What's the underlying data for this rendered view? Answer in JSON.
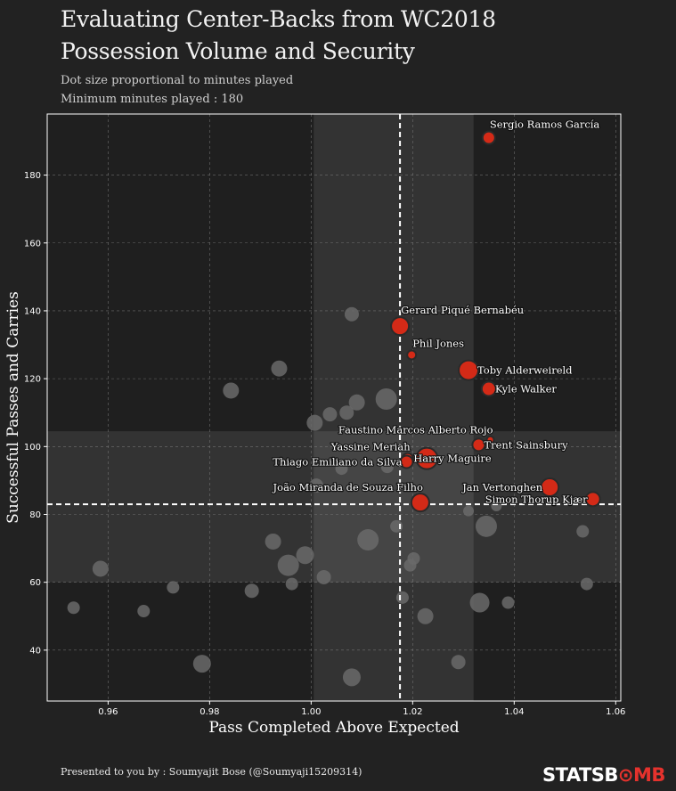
{
  "title_line1": "Evaluating Center-Backs from WC2018",
  "title_line2": "Possession Volume and Security",
  "subtitle_line1": "Dot size proportional to minutes played",
  "subtitle_line2": "Minimum minutes played : 180",
  "footer": "Presented to you by : Soumyajit Bose (@Soumyaji15209314)",
  "logo_part1": "STATSB",
  "logo_part2": "MB",
  "logo_o": "⊙",
  "colors": {
    "background": "#222222",
    "highlight": "#d42a17",
    "others": "#6a6a6a",
    "band": "#3a3a3a"
  },
  "chart_data": {
    "type": "scatter",
    "xlabel": "Pass Completed Above Expected",
    "ylabel": "Successful Passes and Carries",
    "xlim": [
      0.948,
      1.061
    ],
    "ylim": [
      25,
      198
    ],
    "xticks": [
      0.96,
      0.98,
      1.0,
      1.02,
      1.04,
      1.06
    ],
    "xtick_labels": [
      "0.96",
      "0.98",
      "1.00",
      "1.02",
      "1.04",
      "1.06"
    ],
    "yticks": [
      40,
      60,
      80,
      100,
      120,
      140,
      160,
      180
    ],
    "ytick_labels": [
      "40",
      "60",
      "80",
      "100",
      "120",
      "140",
      "160",
      "180"
    ],
    "grid": true,
    "mean_x": 1.0175,
    "mean_y": 83,
    "x_band": [
      1.0005,
      1.032
    ],
    "y_band": [
      60,
      104.5
    ],
    "highlighted": [
      {
        "name": "Sergio Ramos García",
        "x": 1.035,
        "y": 191,
        "size": 7,
        "label_pos": "above-right"
      },
      {
        "name": "Gerard Piqué Bernabéu",
        "x": 1.0175,
        "y": 135.5,
        "size": 10,
        "label_pos": "above-right"
      },
      {
        "name": "Phil Jones",
        "x": 1.0198,
        "y": 127,
        "size": 5,
        "label_pos": "above-right"
      },
      {
        "name": "Toby Alderweireld",
        "x": 1.031,
        "y": 122.5,
        "size": 11,
        "label_pos": "right"
      },
      {
        "name": "Kyle Walker",
        "x": 1.035,
        "y": 117,
        "size": 8,
        "label_pos": "right"
      },
      {
        "name": "Faustino Marcos Alberto Rojo",
        "x": 1.0353,
        "y": 102,
        "size": 4,
        "label_pos": "above-left"
      },
      {
        "name": "Trent Sainsbury",
        "x": 1.033,
        "y": 100.5,
        "size": 7,
        "label_pos": "right"
      },
      {
        "name": "Yassine Meriah",
        "x": 1.019,
        "y": 96.5,
        "size": 6,
        "label_pos": "above-left"
      },
      {
        "name": "Thiago Emiliano da Silva",
        "x": 1.0188,
        "y": 95.5,
        "size": 7,
        "label_pos": "left"
      },
      {
        "name": "Harry Maguire",
        "x": 1.0228,
        "y": 96.5,
        "size": 12,
        "label_pos": "center"
      },
      {
        "name": "Jan Vertonghen",
        "x": 1.047,
        "y": 88,
        "size": 10,
        "label_pos": "left"
      },
      {
        "name": "Simon Thorup Kjær",
        "x": 1.0555,
        "y": 84.5,
        "size": 8,
        "label_pos": "left"
      },
      {
        "name": "João Miranda de Souza Filho",
        "x": 1.0215,
        "y": 83.5,
        "size": 10,
        "label_pos": "above-left"
      }
    ],
    "others": [
      {
        "x": 1.008,
        "y": 139,
        "size": 8
      },
      {
        "x": 0.9937,
        "y": 123,
        "size": 9
      },
      {
        "x": 0.9842,
        "y": 116.5,
        "size": 9
      },
      {
        "x": 1.0148,
        "y": 114,
        "size": 12
      },
      {
        "x": 1.009,
        "y": 113,
        "size": 9
      },
      {
        "x": 1.007,
        "y": 110,
        "size": 8
      },
      {
        "x": 1.0037,
        "y": 109.5,
        "size": 8
      },
      {
        "x": 1.0007,
        "y": 107,
        "size": 9
      },
      {
        "x": 1.015,
        "y": 94,
        "size": 7
      },
      {
        "x": 1.006,
        "y": 93.5,
        "size": 7
      },
      {
        "x": 1.001,
        "y": 88.5,
        "size": 8
      },
      {
        "x": 1.031,
        "y": 81,
        "size": 6
      },
      {
        "x": 1.0365,
        "y": 82.5,
        "size": 6
      },
      {
        "x": 1.0345,
        "y": 76.5,
        "size": 12
      },
      {
        "x": 1.0168,
        "y": 76.5,
        "size": 7
      },
      {
        "x": 1.0112,
        "y": 72.5,
        "size": 12
      },
      {
        "x": 0.9925,
        "y": 72,
        "size": 9
      },
      {
        "x": 0.9988,
        "y": 68,
        "size": 10
      },
      {
        "x": 0.9955,
        "y": 65,
        "size": 12
      },
      {
        "x": 1.0195,
        "y": 65,
        "size": 7
      },
      {
        "x": 1.0202,
        "y": 67,
        "size": 7
      },
      {
        "x": 0.9585,
        "y": 64,
        "size": 9
      },
      {
        "x": 1.0535,
        "y": 75,
        "size": 7
      },
      {
        "x": 1.0025,
        "y": 61.5,
        "size": 8
      },
      {
        "x": 0.9962,
        "y": 59.5,
        "size": 7
      },
      {
        "x": 0.9728,
        "y": 58.5,
        "size": 7
      },
      {
        "x": 0.9883,
        "y": 57.5,
        "size": 8
      },
      {
        "x": 1.0543,
        "y": 59.5,
        "size": 7
      },
      {
        "x": 1.018,
        "y": 55.5,
        "size": 7
      },
      {
        "x": 1.0332,
        "y": 54,
        "size": 11
      },
      {
        "x": 1.0388,
        "y": 54,
        "size": 7
      },
      {
        "x": 0.9532,
        "y": 52.5,
        "size": 7
      },
      {
        "x": 0.967,
        "y": 51.5,
        "size": 7
      },
      {
        "x": 1.0225,
        "y": 50,
        "size": 9
      },
      {
        "x": 1.029,
        "y": 36.5,
        "size": 8
      },
      {
        "x": 0.9785,
        "y": 36,
        "size": 10
      },
      {
        "x": 1.008,
        "y": 32,
        "size": 10
      }
    ]
  }
}
